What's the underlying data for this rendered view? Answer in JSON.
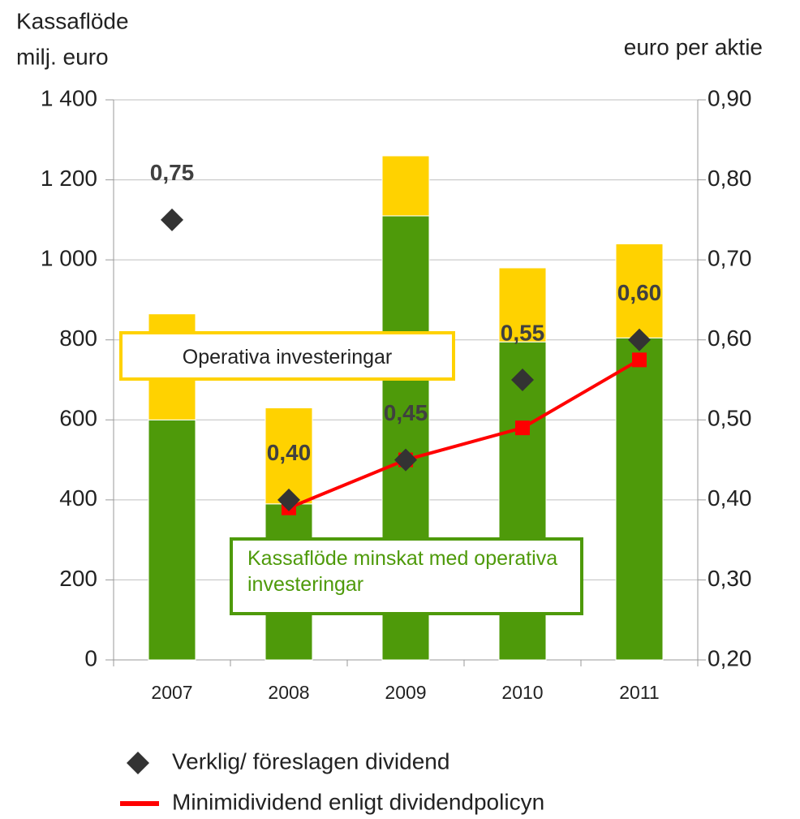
{
  "chart_data": {
    "type": "bar",
    "y_label": [
      "Kassaflöde",
      "milj. euro"
    ],
    "y2_label": "euro per aktie",
    "categories": [
      "2007",
      "2008",
      "2009",
      "2010",
      "2011"
    ],
    "ylim": [
      0,
      1400
    ],
    "yticks": [
      0,
      200,
      400,
      600,
      800,
      {
        "value": 1000,
        "label": "1 000"
      },
      {
        "value": 1200,
        "label": "1 200"
      },
      {
        "value": 1400,
        "label": "1 400"
      }
    ],
    "y2lim": [
      0.2,
      0.9
    ],
    "y2ticks": [
      {
        "value": 0.2,
        "label": "0,20"
      },
      {
        "value": 0.3,
        "label": "0,30"
      },
      {
        "value": 0.4,
        "label": "0,40"
      },
      {
        "value": 0.5,
        "label": "0,50"
      },
      {
        "value": 0.6,
        "label": "0,60"
      },
      {
        "value": 0.7,
        "label": "0,70"
      },
      {
        "value": 0.8,
        "label": "0,80"
      },
      {
        "value": 0.9,
        "label": "0,90"
      }
    ],
    "grid": true,
    "series": [
      {
        "name": "Kassaflöde minskat med operativa investeringar",
        "type": "bar",
        "color": "#4e9a0a",
        "values": [
          600,
          390,
          1110,
          795,
          805
        ]
      },
      {
        "name": "Operativa investeringar",
        "type": "bar",
        "color": "#ffd200",
        "values": [
          265,
          240,
          150,
          185,
          235
        ]
      },
      {
        "name": "Verklig/ föreslagen dividend",
        "type": "scatter",
        "axis": "y2",
        "color": "#333333",
        "values": [
          0.75,
          0.4,
          0.45,
          0.55,
          0.6
        ],
        "value_labels": [
          "0,75",
          "0,40",
          "0,45",
          "0,55",
          "0,60"
        ]
      },
      {
        "name": "Minimidividend enligt dividendpolicyn",
        "type": "line",
        "axis": "y2",
        "color": "#ff0000",
        "values": [
          null,
          0.39,
          0.45,
          0.49,
          0.575
        ]
      }
    ]
  }
}
